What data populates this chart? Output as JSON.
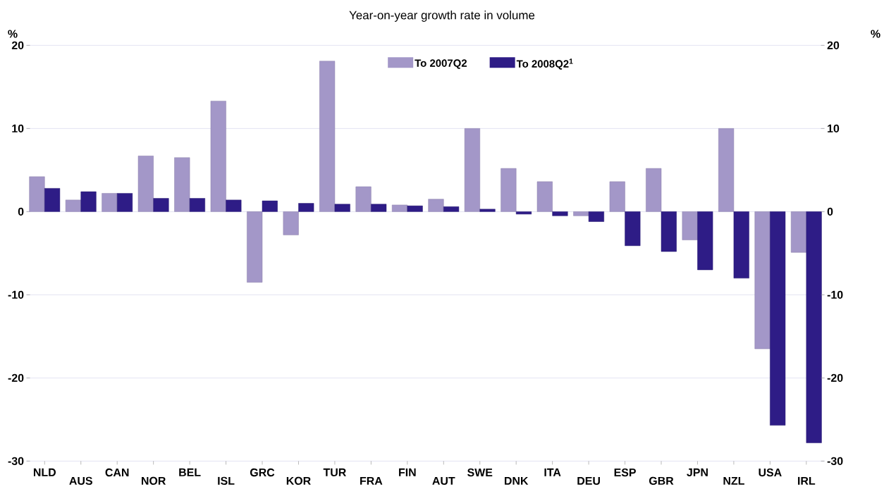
{
  "chart_data": {
    "type": "bar",
    "title": "Year-on-year growth rate in volume",
    "ylabel": "%",
    "y2label": "%",
    "categories": [
      "NLD",
      "AUS",
      "CAN",
      "NOR",
      "BEL",
      "ISL",
      "GRC",
      "KOR",
      "TUR",
      "FRA",
      "FIN",
      "AUT",
      "SWE",
      "DNK",
      "ITA",
      "DEU",
      "ESP",
      "GBR",
      "JPN",
      "NZL",
      "USA",
      "IRL"
    ],
    "series": [
      {
        "name": "To 2007Q2",
        "color": "#a397c8",
        "values": [
          4.2,
          1.4,
          2.2,
          6.7,
          6.5,
          13.3,
          -8.5,
          -2.8,
          18.1,
          3.0,
          0.8,
          1.5,
          10.0,
          5.2,
          3.6,
          -0.5,
          3.6,
          5.2,
          -3.4,
          10.0,
          -16.5,
          -4.9
        ]
      },
      {
        "name": "To 2008Q2$^{1}$",
        "color": "#2e1c86",
        "values": [
          2.8,
          2.4,
          2.2,
          1.6,
          1.6,
          1.4,
          1.3,
          1.0,
          0.9,
          0.9,
          0.7,
          0.6,
          0.3,
          -0.3,
          -0.5,
          -1.2,
          -4.1,
          -4.8,
          -7.0,
          -8.0,
          -25.7,
          -27.8
        ]
      }
    ],
    "ylim": [
      -30,
      20
    ],
    "yticks": [
      -30,
      -20,
      -10,
      0,
      10,
      20
    ],
    "y2lim": [
      -30,
      20
    ],
    "y2ticks": [
      -30,
      -20,
      -10,
      0,
      10,
      20
    ],
    "grid": "y",
    "legend": "top"
  }
}
